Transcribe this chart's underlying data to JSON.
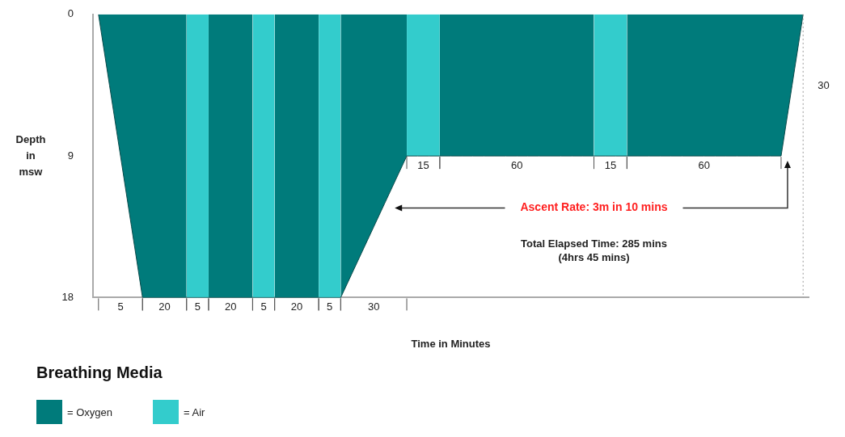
{
  "chart_data": {
    "type": "area",
    "xlabel": "Time in Minutes",
    "ylabel": "Depth in msw",
    "legend_title": "Breathing Media",
    "ylim": [
      18,
      0
    ],
    "yticks": [
      0,
      9,
      18
    ],
    "tick_labels": "y",
    "grid": false,
    "legend": "bottom left",
    "categories": [
      null,
      null,
      null,
      null,
      null,
      null,
      null,
      null,
      null,
      null,
      null,
      null,
      null,
      null,
      null,
      null,
      null,
      null,
      null,
      null,
      null,
      null,
      null,
      null,
      null,
      null,
      null,
      null,
      null,
      null,
      null,
      null,
      null,
      null,
      null,
      null,
      null,
      null,
      null,
      null,
      null,
      null,
      null,
      null,
      null,
      null,
      null,
      null,
      null,
      null,
      null,
      null,
      null,
      null,
      null,
      null,
      null,
      null,
      null,
      null,
      null,
      null,
      null,
      null,
      null
    ],
    "series": [
      {
        "name": "= Oxygen",
        "color": "#007b7b",
        "values": [
          0,
          4.5,
          9,
          13.5,
          18,
          18,
          18,
          18,
          18,
          null,
          18,
          18,
          18,
          18,
          18,
          null,
          18,
          18,
          18,
          18,
          18,
          null,
          18,
          16.5,
          15,
          13.5,
          12,
          10.5,
          9,
          null,
          null,
          9,
          9,
          9,
          9,
          9,
          9,
          9,
          9,
          9,
          9,
          9,
          9,
          9,
          9,
          9,
          null,
          null,
          9,
          9,
          9,
          9,
          9,
          9,
          9,
          9,
          9,
          9,
          9,
          9,
          9,
          9,
          9,
          4.5,
          0
        ]
      },
      {
        "name": "= Air",
        "color": "#33cccc",
        "values": [
          null,
          null,
          null,
          null,
          null,
          null,
          null,
          null,
          18,
          18,
          18,
          null,
          null,
          null,
          18,
          18,
          18,
          null,
          null,
          null,
          18,
          18,
          18,
          null,
          null,
          null,
          null,
          null,
          9,
          9,
          9,
          9,
          null,
          null,
          null,
          null,
          null,
          null,
          null,
          null,
          null,
          null,
          null,
          null,
          null,
          9,
          9,
          9,
          9,
          null,
          null,
          null,
          null,
          null,
          null,
          null,
          null,
          null,
          null,
          null,
          null,
          null,
          null,
          null,
          null
        ]
      }
    ],
    "annotations": [
      "5",
      "20",
      "5",
      "20",
      "5",
      "20",
      "5",
      "30",
      "15",
      "60",
      "15",
      "60",
      "30",
      "Ascent Rate: 3m in 10 mins",
      "Total Elapsed Time: 285 mins",
      "(4hrs 45 mins)"
    ]
  }
}
